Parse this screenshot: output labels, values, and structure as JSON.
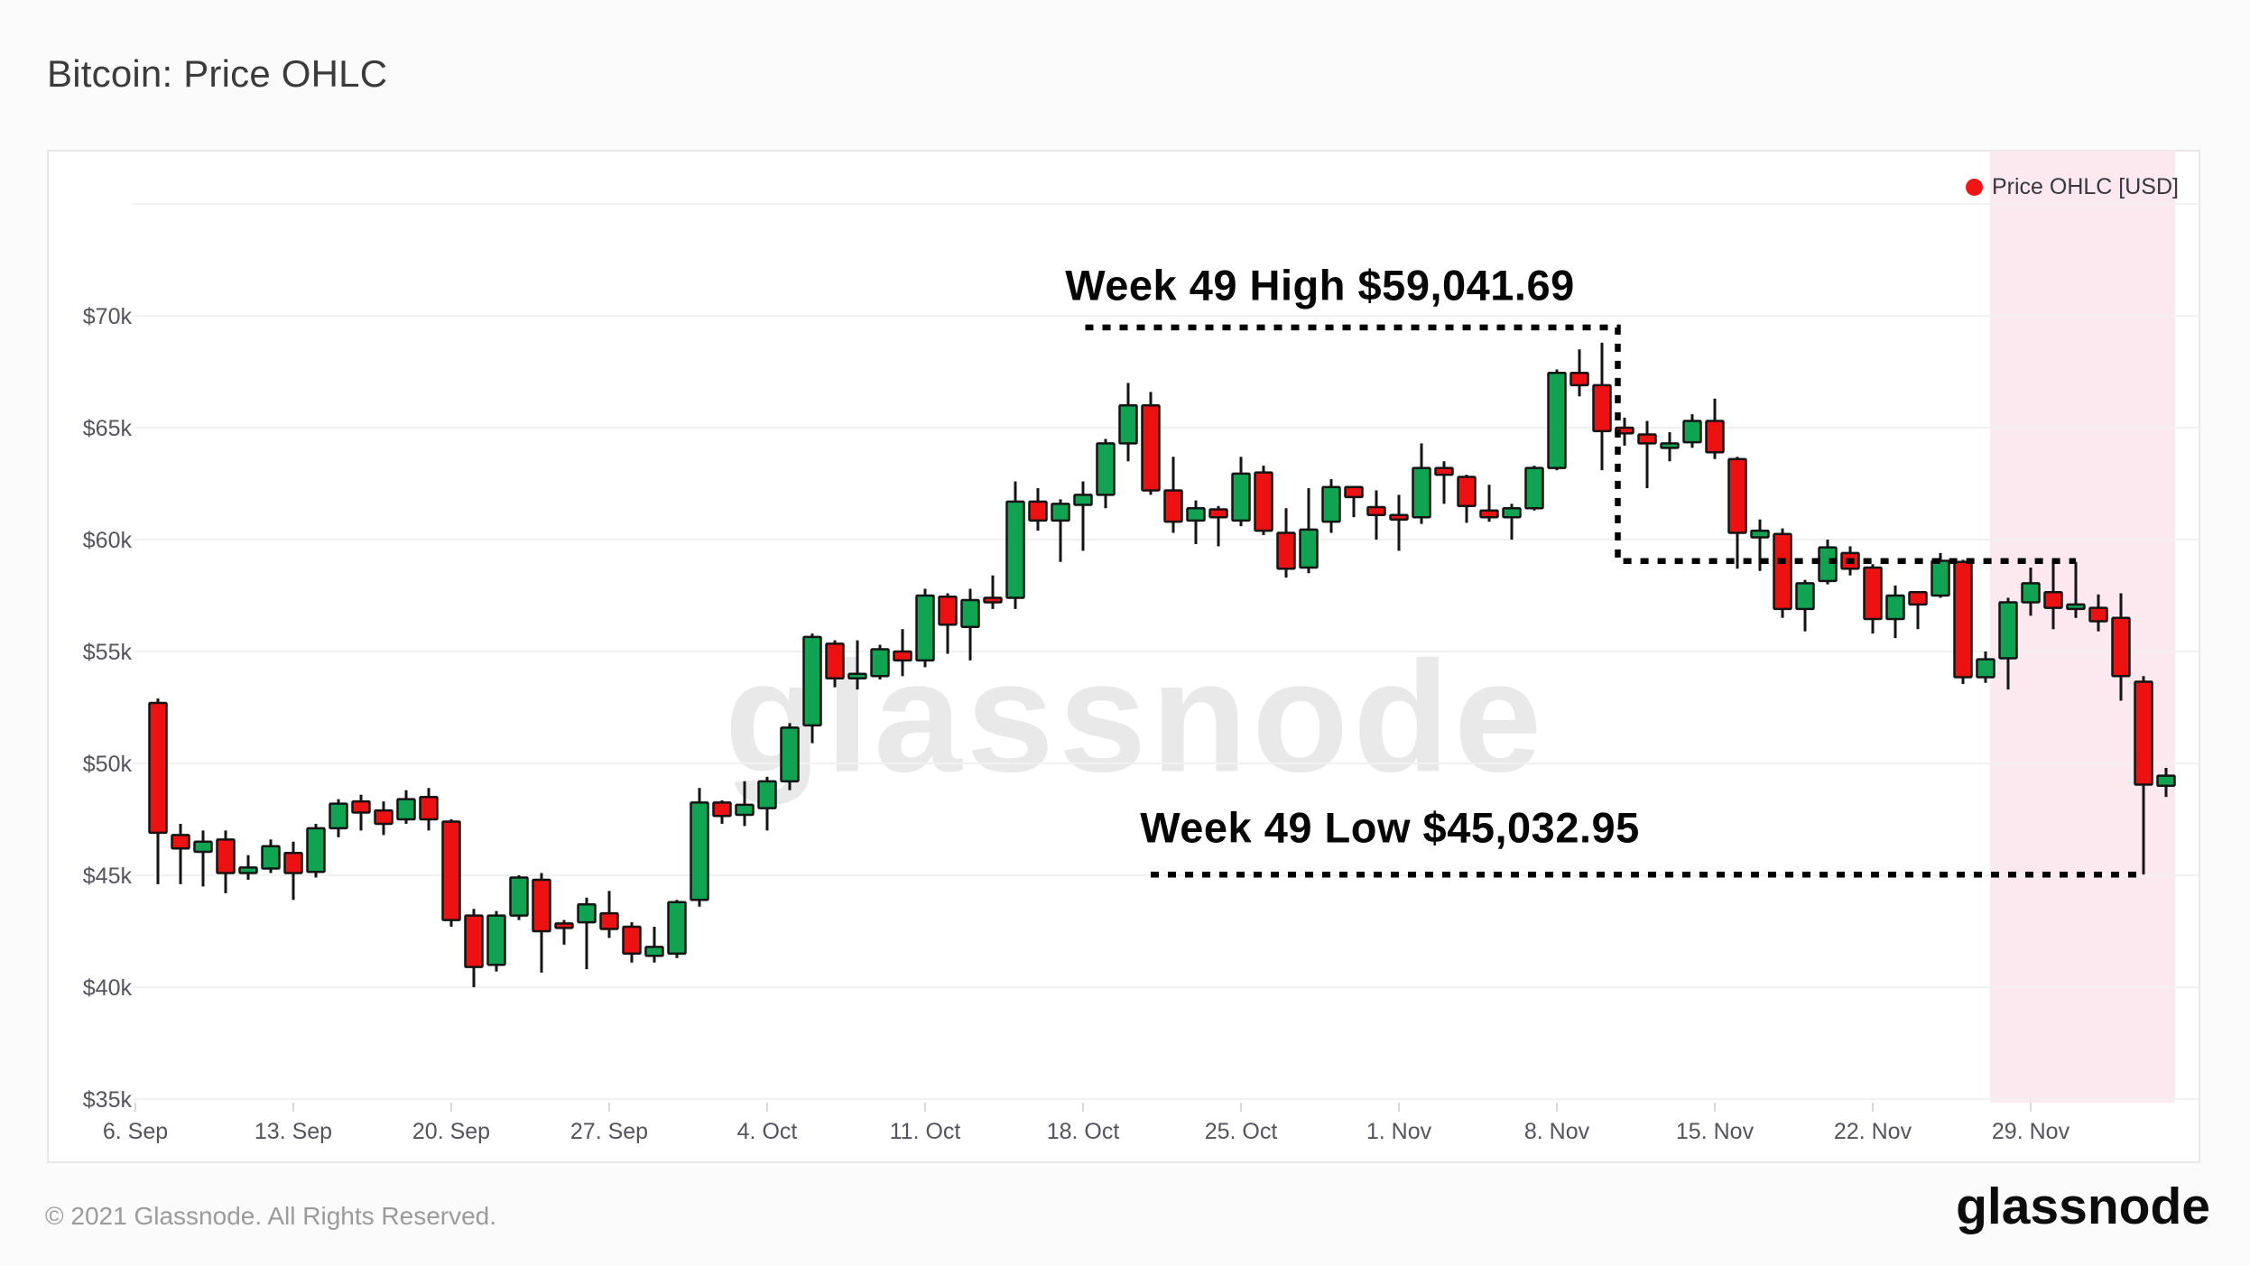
{
  "page": {
    "title": "Bitcoin: Price OHLC",
    "watermark": "glassnode",
    "footer_copyright": "© 2021 Glassnode. All Rights Reserved.",
    "footer_logo": "glassnode"
  },
  "legend": {
    "label": "Price OHLC [USD]",
    "dot_color": "#f21414"
  },
  "colors": {
    "up": "#10A452",
    "down": "#EE1111",
    "candle_outline": "#141414",
    "wick": "#141414",
    "grid": "#f1f1f1",
    "axis_text": "#54545e",
    "tick_mark": "#d9d9d9",
    "band": "#fbe9ef",
    "annotation_line": "#000000"
  },
  "chart_data": {
    "type": "candlestick",
    "title": "Bitcoin: Price OHLC",
    "series_name": "Price OHLC [USD]",
    "unit": "USD thousands",
    "y_axis": {
      "labels": [
        {
          "text": "$70k",
          "value_k": 70
        },
        {
          "text": "$65k",
          "value_k": 65
        },
        {
          "text": "$60k",
          "value_k": 60
        },
        {
          "text": "$55k",
          "value_k": 55
        },
        {
          "text": "$50k",
          "value_k": 50
        },
        {
          "text": "$45k",
          "value_k": 45
        },
        {
          "text": "$40k",
          "value_k": 40
        },
        {
          "text": "$35k",
          "value_k": 35
        }
      ],
      "extra_gridlines_k": [
        75
      ],
      "range_k": [
        35,
        75
      ]
    },
    "x_axis": {
      "labels": [
        {
          "text": "6. Sep",
          "day": 0
        },
        {
          "text": "13. Sep",
          "day": 7
        },
        {
          "text": "20. Sep",
          "day": 14
        },
        {
          "text": "27. Sep",
          "day": 21
        },
        {
          "text": "4. Oct",
          "day": 28
        },
        {
          "text": "11. Oct",
          "day": 35
        },
        {
          "text": "18. Oct",
          "day": 42
        },
        {
          "text": "25. Oct",
          "day": 49
        },
        {
          "text": "1. Nov",
          "day": 56
        },
        {
          "text": "8. Nov",
          "day": 63
        },
        {
          "text": "15. Nov",
          "day": 70
        },
        {
          "text": "22. Nov",
          "day": 77
        },
        {
          "text": "29. Nov",
          "day": 84
        }
      ]
    },
    "candles": [
      [
        "Sep 7",
        52.7,
        52.9,
        44.6,
        46.9
      ],
      [
        "Sep 8",
        46.8,
        47.3,
        44.6,
        46.2
      ],
      [
        "Sep 9",
        46.05,
        47.0,
        44.5,
        46.5
      ],
      [
        "Sep 10",
        46.6,
        47.0,
        44.2,
        45.1
      ],
      [
        "Sep 11",
        45.1,
        45.9,
        44.8,
        45.35
      ],
      [
        "Sep 12",
        45.3,
        46.6,
        45.1,
        46.3
      ],
      [
        "Sep 13",
        46.0,
        46.5,
        43.9,
        45.1
      ],
      [
        "Sep 14",
        45.15,
        47.3,
        44.9,
        47.1
      ],
      [
        "Sep 15",
        47.1,
        48.4,
        46.7,
        48.2
      ],
      [
        "Sep 16",
        48.3,
        48.6,
        47.0,
        47.8
      ],
      [
        "Sep 17",
        47.9,
        48.3,
        46.8,
        47.3
      ],
      [
        "Sep 18",
        47.5,
        48.8,
        47.3,
        48.4
      ],
      [
        "Sep 19",
        48.5,
        48.9,
        47.0,
        47.5
      ],
      [
        "Sep 20",
        47.4,
        47.5,
        42.7,
        43.0
      ],
      [
        "Sep 21",
        43.2,
        43.5,
        40.0,
        40.9
      ],
      [
        "Sep 22",
        41.0,
        43.4,
        40.7,
        43.2
      ],
      [
        "Sep 23",
        43.2,
        45.0,
        43.0,
        44.9
      ],
      [
        "Sep 24",
        44.8,
        45.1,
        40.65,
        42.5
      ],
      [
        "Sep 25",
        42.85,
        43.0,
        41.9,
        42.65
      ],
      [
        "Sep 26",
        42.9,
        44.0,
        40.8,
        43.7
      ],
      [
        "Sep 27",
        43.3,
        44.3,
        42.2,
        42.6
      ],
      [
        "Sep 28",
        42.7,
        42.9,
        41.1,
        41.5
      ],
      [
        "Sep 29",
        41.4,
        42.7,
        41.1,
        41.8
      ],
      [
        "Sep 30",
        41.5,
        43.9,
        41.3,
        43.8
      ],
      [
        "Oct 1",
        43.9,
        48.9,
        43.6,
        48.25
      ],
      [
        "Oct 2",
        48.25,
        48.35,
        47.3,
        47.65
      ],
      [
        "Oct 3",
        47.7,
        49.2,
        47.2,
        48.15
      ],
      [
        "Oct 4",
        48.0,
        49.4,
        47.0,
        49.2
      ],
      [
        "Oct 5",
        49.2,
        51.8,
        48.8,
        51.6
      ],
      [
        "Oct 6",
        51.7,
        55.8,
        50.9,
        55.65
      ],
      [
        "Oct 7",
        55.35,
        55.5,
        53.4,
        53.8
      ],
      [
        "Oct 8",
        53.85,
        55.5,
        53.3,
        54.0
      ],
      [
        "Oct 9",
        53.9,
        55.3,
        53.75,
        55.1
      ],
      [
        "Oct 10",
        55.0,
        56.0,
        53.9,
        54.6
      ],
      [
        "Oct 11",
        54.6,
        57.8,
        54.3,
        57.5
      ],
      [
        "Oct 12",
        57.45,
        57.6,
        54.9,
        56.2
      ],
      [
        "Oct 13",
        56.1,
        57.8,
        54.6,
        57.3
      ],
      [
        "Oct 14",
        57.4,
        58.4,
        56.9,
        57.35
      ],
      [
        "Oct 15",
        57.4,
        62.6,
        56.9,
        61.7
      ],
      [
        "Oct 16",
        61.7,
        62.3,
        60.4,
        60.85
      ],
      [
        "Oct 17",
        60.85,
        61.8,
        59.0,
        61.6
      ],
      [
        "Oct 18",
        61.55,
        62.6,
        59.5,
        62.0
      ],
      [
        "Oct 19",
        62.0,
        64.5,
        61.4,
        64.3
      ],
      [
        "Oct 20",
        64.3,
        67.0,
        63.5,
        66.0
      ],
      [
        "Oct 21",
        66.0,
        66.6,
        62.0,
        62.2
      ],
      [
        "Oct 22",
        62.2,
        63.7,
        60.3,
        60.8
      ],
      [
        "Oct 23",
        60.85,
        61.75,
        59.8,
        61.4
      ],
      [
        "Oct 24",
        61.35,
        61.5,
        59.7,
        61.0
      ],
      [
        "Oct 25",
        60.85,
        63.7,
        60.6,
        62.95
      ],
      [
        "Oct 26",
        63.0,
        63.3,
        60.2,
        60.4
      ],
      [
        "Oct 27",
        60.3,
        61.4,
        58.3,
        58.7
      ],
      [
        "Oct 28",
        58.75,
        62.3,
        58.5,
        60.45
      ],
      [
        "Oct 29",
        60.8,
        62.7,
        60.3,
        62.35
      ],
      [
        "Oct 30",
        62.35,
        62.4,
        61.0,
        61.9
      ],
      [
        "Oct 31",
        61.45,
        62.2,
        60.0,
        61.1
      ],
      [
        "Nov 1",
        61.1,
        62.0,
        59.5,
        60.9
      ],
      [
        "Nov 2",
        61.0,
        64.3,
        60.7,
        63.2
      ],
      [
        "Nov 3",
        63.2,
        63.5,
        61.6,
        62.9
      ],
      [
        "Nov 4",
        62.8,
        62.9,
        60.75,
        61.5
      ],
      [
        "Nov 5",
        61.3,
        62.45,
        60.8,
        61.0
      ],
      [
        "Nov 6",
        61.0,
        61.6,
        60.0,
        61.4
      ],
      [
        "Nov 7",
        61.4,
        63.3,
        61.3,
        63.2
      ],
      [
        "Nov 8",
        63.2,
        67.6,
        63.1,
        67.45
      ],
      [
        "Nov 9",
        67.45,
        68.5,
        66.4,
        66.9
      ],
      [
        "Nov 10",
        66.9,
        68.8,
        63.1,
        64.85
      ],
      [
        "Nov 11",
        65.0,
        65.45,
        64.2,
        64.75
      ],
      [
        "Nov 12",
        64.7,
        65.3,
        62.3,
        64.3
      ],
      [
        "Nov 13",
        64.1,
        64.8,
        63.5,
        64.3
      ],
      [
        "Nov 14",
        64.35,
        65.6,
        64.1,
        65.3
      ],
      [
        "Nov 15",
        65.3,
        66.3,
        63.6,
        63.9
      ],
      [
        "Nov 16",
        63.6,
        63.7,
        58.7,
        60.3
      ],
      [
        "Nov 17",
        60.1,
        60.9,
        58.6,
        60.4
      ],
      [
        "Nov 18",
        60.25,
        60.5,
        56.5,
        56.9
      ],
      [
        "Nov 19",
        56.9,
        58.2,
        55.9,
        58.05
      ],
      [
        "Nov 20",
        58.15,
        60.0,
        58.0,
        59.65
      ],
      [
        "Nov 21",
        59.4,
        59.7,
        58.4,
        58.7
      ],
      [
        "Nov 22",
        58.75,
        58.9,
        55.8,
        56.45
      ],
      [
        "Nov 23",
        56.45,
        57.95,
        55.6,
        57.5
      ],
      [
        "Nov 24",
        57.65,
        57.7,
        56.0,
        57.1
      ],
      [
        "Nov 25",
        57.5,
        59.4,
        57.4,
        59.05
      ],
      [
        "Nov 26",
        59.0,
        59.1,
        53.55,
        53.85
      ],
      [
        "Nov 27",
        53.85,
        55.0,
        53.6,
        54.65
      ],
      [
        "Nov 28",
        54.7,
        57.4,
        53.3,
        57.2
      ],
      [
        "Nov 29",
        57.2,
        58.75,
        56.6,
        58.05
      ],
      [
        "Nov 30",
        57.65,
        59.042,
        56.0,
        56.95
      ],
      [
        "Dec 1",
        56.9,
        59.0,
        56.5,
        57.1
      ],
      [
        "Dec 2",
        56.95,
        57.55,
        55.9,
        56.35
      ],
      [
        "Dec 3",
        56.5,
        57.6,
        52.8,
        53.9
      ],
      [
        "Dec 4",
        53.65,
        53.9,
        45.033,
        49.05
      ],
      [
        "Dec 5",
        49.0,
        49.8,
        48.5,
        49.45
      ]
    ],
    "highlight_band": {
      "label": "Week 49",
      "start_candle": "Nov 28",
      "end_candle": "Dec 5"
    },
    "annotations": {
      "high": {
        "text": "Week 49 High $59,041.69",
        "value": 59041.69,
        "price_k": 59.042,
        "label_center_day": 52.5,
        "label_center_price_k": 71.37,
        "path_day_price": [
          [
            42.1,
            69.48
          ],
          [
            65.7,
            69.48
          ],
          [
            65.7,
            59.042
          ],
          [
            86.0,
            59.042
          ]
        ]
      },
      "low": {
        "text": "Week 49 Low $45,032.95",
        "value": 45032.95,
        "price_k": 45.033,
        "label_center_day": 55.6,
        "label_center_price_k": 47.13,
        "path_day_price": [
          [
            45.0,
            45.033
          ],
          [
            88.9,
            45.033
          ]
        ]
      }
    },
    "legend_position": "top-right",
    "grid": true
  }
}
